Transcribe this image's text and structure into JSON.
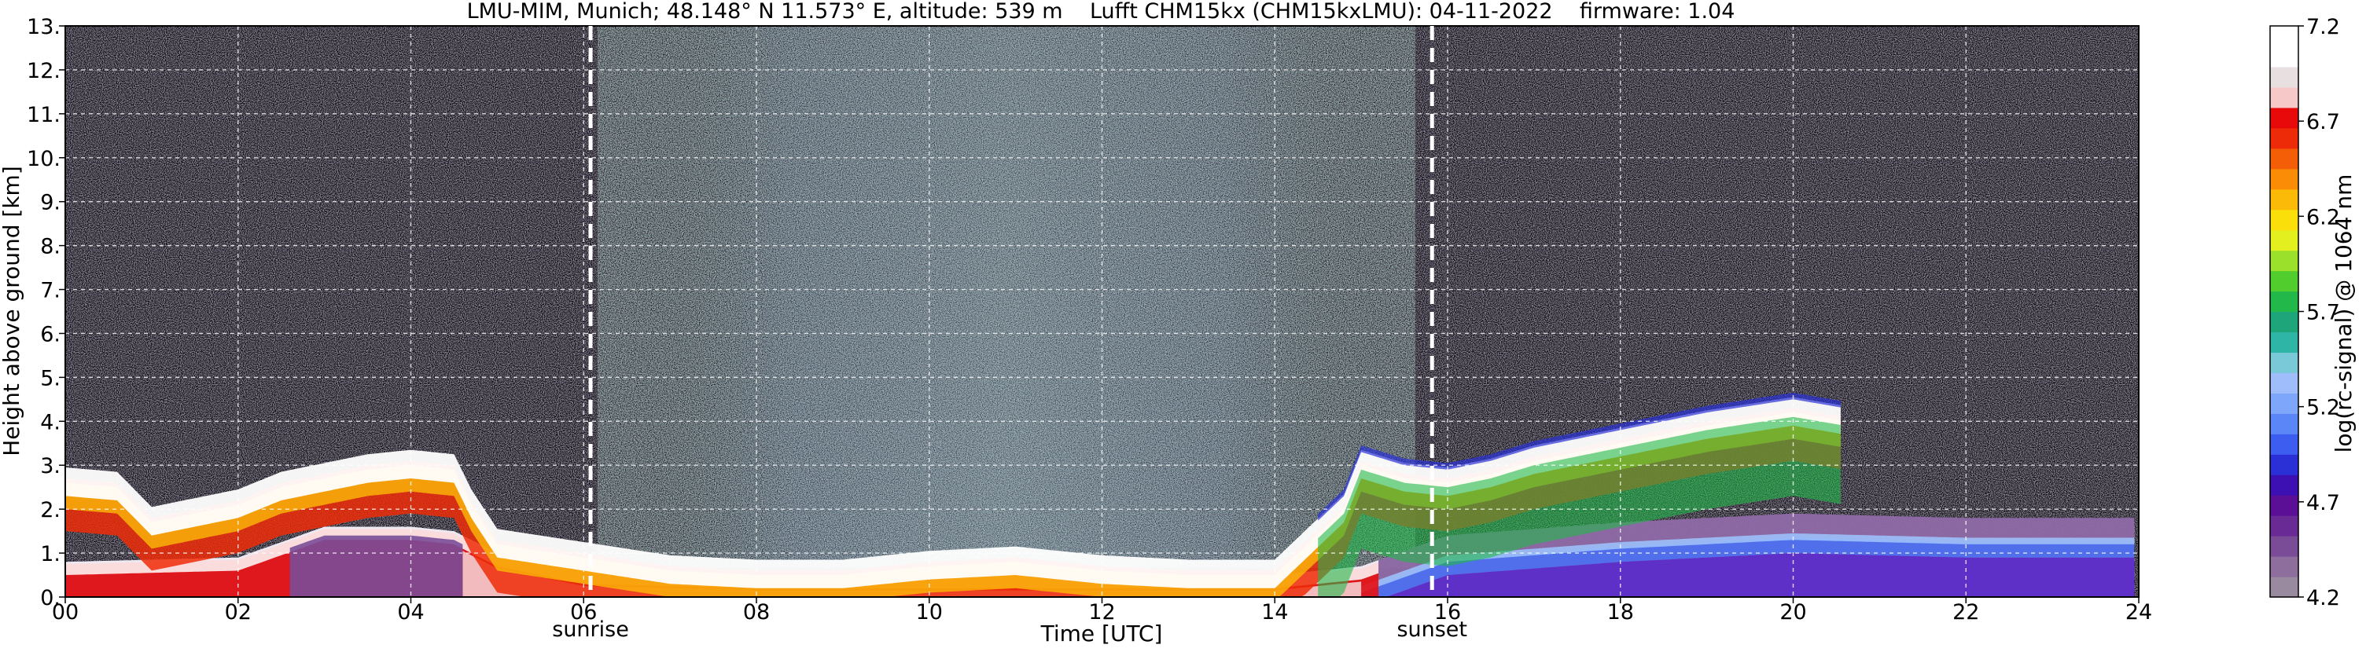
{
  "chart_data": {
    "type": "heatmap",
    "title": "LMU-MIM, Munich; 48.148° N 11.573° E, altitude: 539 m    Lufft CHM15kx (CHM15kxLMU): 04-11-2022    firmware: 1.04",
    "xlabel": "Time [UTC]",
    "ylabel": "Height above ground [km]",
    "xlim": [
      0,
      24
    ],
    "ylim": [
      0,
      13
    ],
    "x_ticks": [
      "00",
      "02",
      "04",
      "06",
      "08",
      "10",
      "12",
      "14",
      "16",
      "18",
      "20",
      "22",
      "24"
    ],
    "y_ticks": [
      "0.",
      "1.",
      "2.",
      "3.",
      "4.",
      "5.",
      "6.",
      "7.",
      "8.",
      "9.",
      "10.",
      "11.",
      "12.",
      "13."
    ],
    "grid": true,
    "colorbar": {
      "label": "log(rc-signal) @ 1064 nm",
      "range": [
        4.2,
        7.2
      ],
      "ticks": [
        "4.2",
        "4.7",
        "5.2",
        "5.7",
        "6.2",
        "6.7",
        "7.2"
      ],
      "colors": [
        "#9a8aa0",
        "#8d6e9c",
        "#7a4c98",
        "#6a2a96",
        "#5a0f96",
        "#3d10b4",
        "#2a30d6",
        "#3d5cf0",
        "#5a86f8",
        "#7ea6fb",
        "#9fbdfb",
        "#79c9d9",
        "#2fb5a6",
        "#1ea67a",
        "#22b94a",
        "#52cd2e",
        "#9be02a",
        "#e3ef1e",
        "#fbdf0a",
        "#fbba08",
        "#fa8c06",
        "#f45e06",
        "#ee2b08",
        "#e80a0a",
        "#f6c8c8",
        "#e8e0e0",
        "#ffffff",
        "#ffffff"
      ]
    },
    "annotations": [
      {
        "text": "sunrise",
        "x": 6.08
      },
      {
        "text": "sunset",
        "x": 15.82
      }
    ],
    "cloud_base_km": [
      [
        0.0,
        2.9
      ],
      [
        0.6,
        2.8
      ],
      [
        1.0,
        2.0
      ],
      [
        1.5,
        2.2
      ],
      [
        2.0,
        2.4
      ],
      [
        2.5,
        2.8
      ],
      [
        3.0,
        3.0
      ],
      [
        3.5,
        3.2
      ],
      [
        4.0,
        3.3
      ],
      [
        4.5,
        3.2
      ],
      [
        4.7,
        2.4
      ],
      [
        5.0,
        1.5
      ],
      [
        6.0,
        1.2
      ],
      [
        7.0,
        0.9
      ],
      [
        8.0,
        0.8
      ],
      [
        9.0,
        0.8
      ],
      [
        10.0,
        1.0
      ],
      [
        11.0,
        1.1
      ],
      [
        12.0,
        0.9
      ],
      [
        13.0,
        0.8
      ],
      [
        14.0,
        0.8
      ],
      [
        14.8,
        2.3
      ],
      [
        15.0,
        3.3
      ],
      [
        15.5,
        3.0
      ],
      [
        16.0,
        2.9
      ],
      [
        16.5,
        3.1
      ],
      [
        17.0,
        3.4
      ],
      [
        18.0,
        3.8
      ],
      [
        19.0,
        4.2
      ],
      [
        20.0,
        4.5
      ],
      [
        20.6,
        4.3
      ]
    ],
    "mixing_layer_km": [
      [
        0.0,
        0.8
      ],
      [
        2.0,
        0.9
      ],
      [
        3.0,
        1.6
      ],
      [
        4.0,
        1.6
      ],
      [
        4.5,
        1.5
      ],
      [
        5.0,
        1.0
      ],
      [
        6.0,
        0.6
      ],
      [
        8.0,
        0.5
      ],
      [
        10.0,
        0.5
      ],
      [
        12.0,
        0.5
      ],
      [
        14.0,
        0.5
      ],
      [
        15.0,
        0.7
      ],
      [
        16.0,
        1.4
      ],
      [
        18.0,
        1.7
      ],
      [
        20.0,
        1.9
      ],
      [
        22.0,
        1.8
      ],
      [
        24.0,
        1.8
      ]
    ]
  }
}
